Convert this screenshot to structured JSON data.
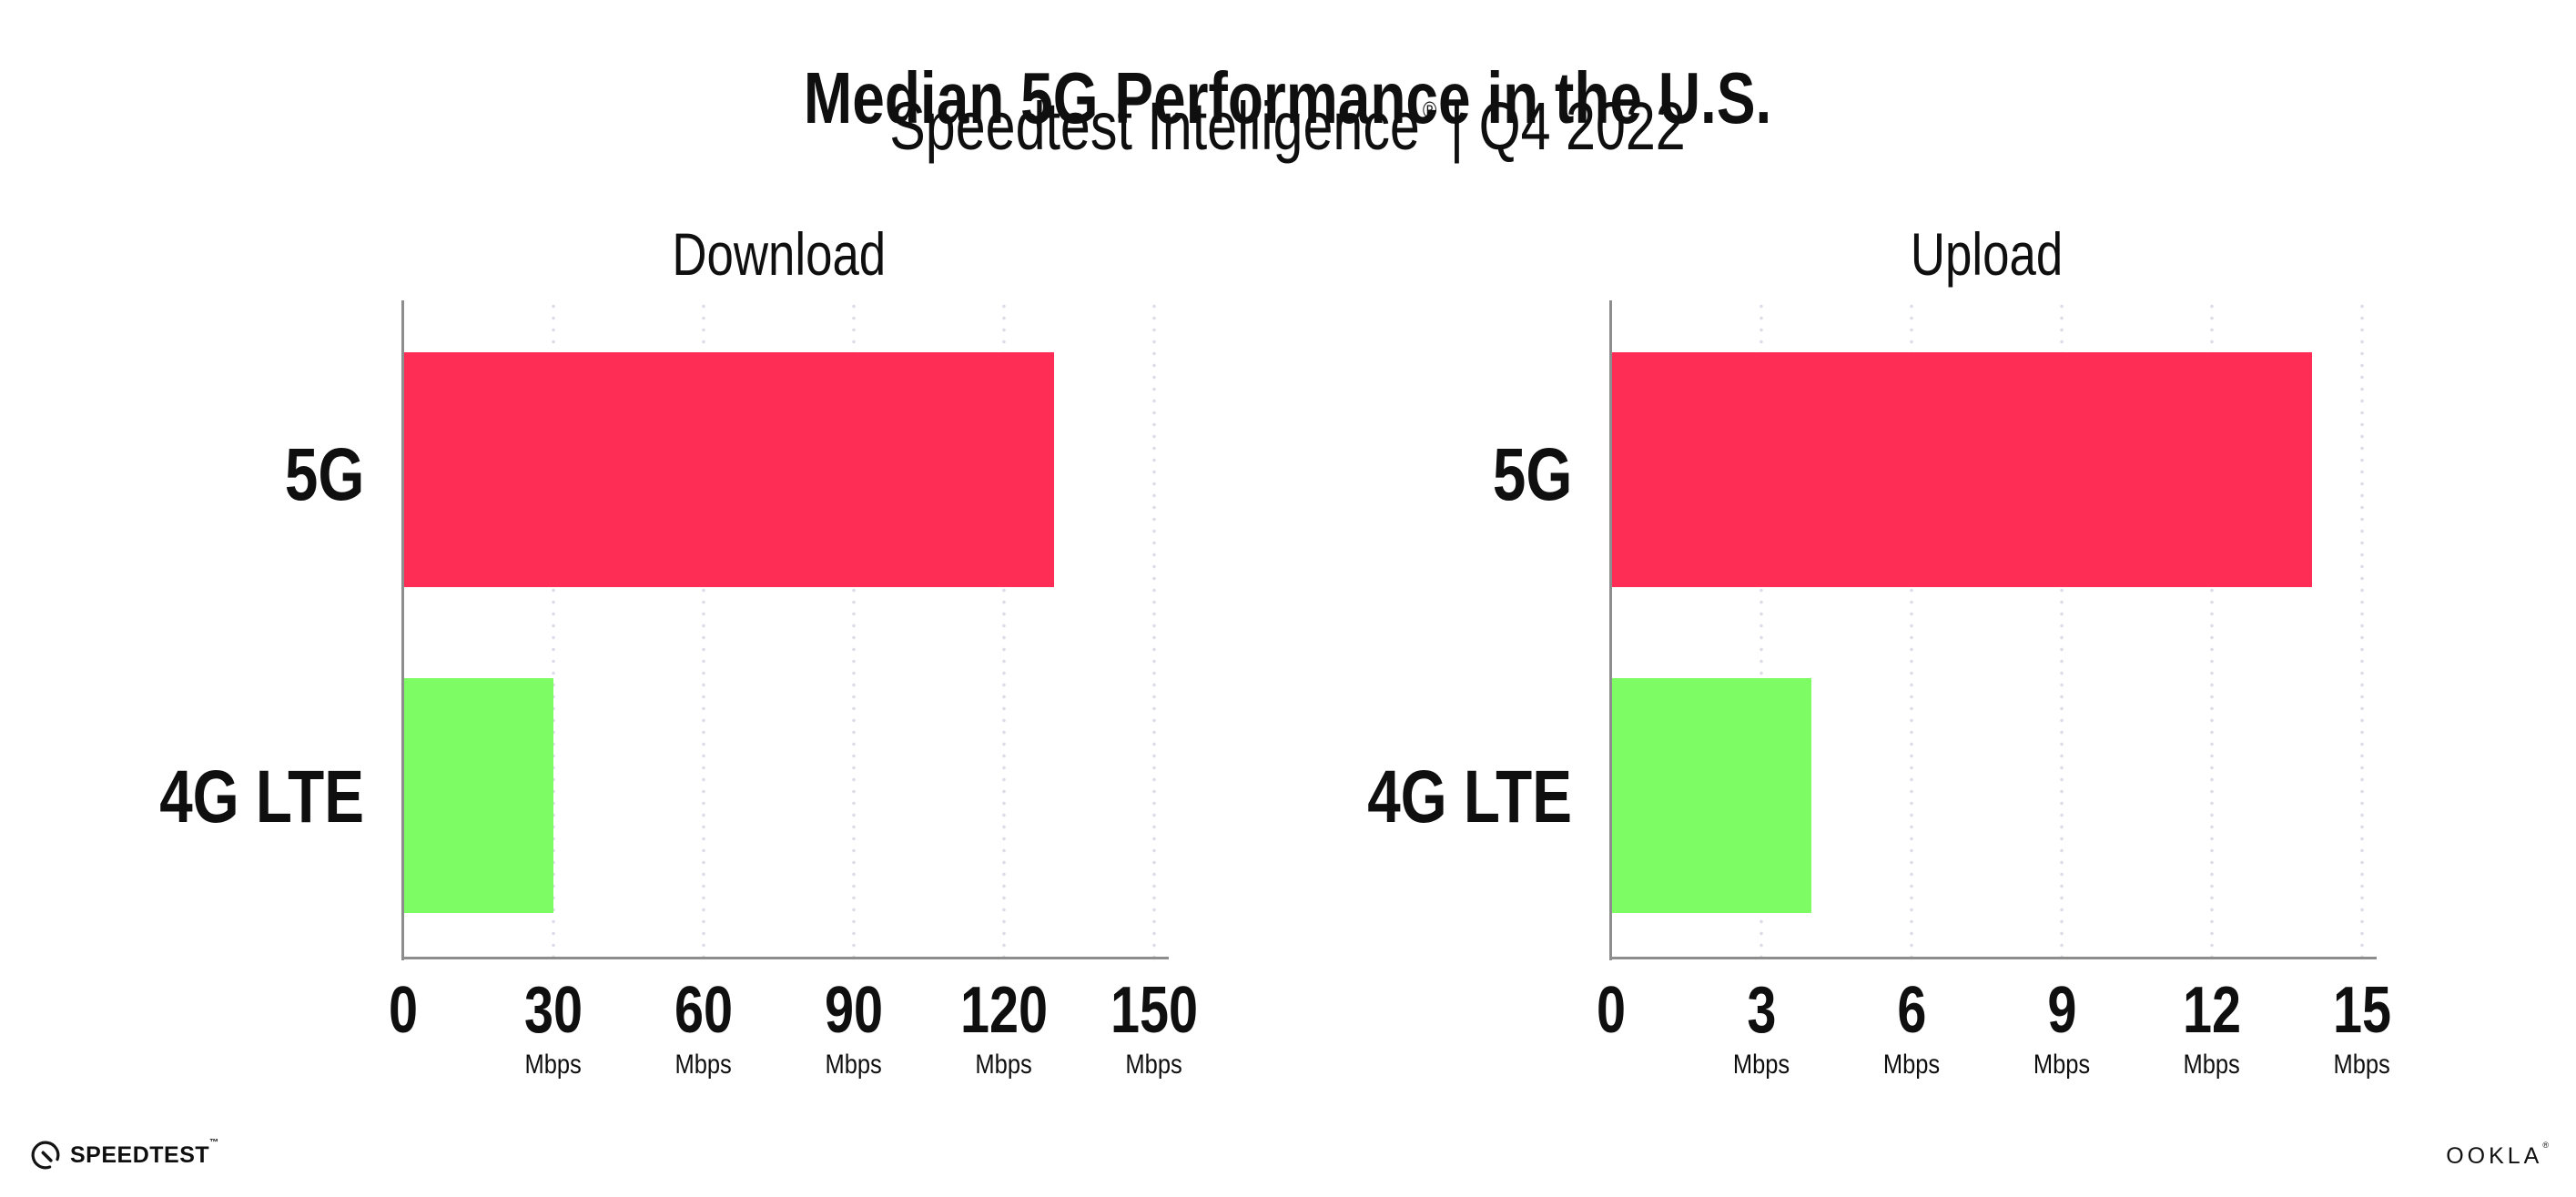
{
  "header": {
    "title": "Median 5G Performance in the U.S.",
    "subtitle_brand": "Speedtest Intelligence",
    "subtitle_reg": "®",
    "subtitle_period": "| Q4 2022"
  },
  "colors": {
    "bar_5g": "#fd2d56",
    "bar_4g_lte": "#7efc63",
    "gridline": "#dcdce8",
    "axis": "#8d8d8d",
    "text": "#0f0f0f"
  },
  "chart_data": [
    {
      "type": "bar",
      "orientation": "horizontal",
      "title": "Download",
      "categories": [
        "5G",
        "4G LTE"
      ],
      "values": [
        130,
        30
      ],
      "value_unit": "Mbps",
      "xlim": [
        0,
        150
      ],
      "grid": "vertical-dotted",
      "legend": "none",
      "bar_colors": [
        "#fd2d56",
        "#7efc63"
      ],
      "ticks": [
        {
          "value": "0",
          "unit": ""
        },
        {
          "value": "30",
          "unit": "Mbps"
        },
        {
          "value": "60",
          "unit": "Mbps"
        },
        {
          "value": "90",
          "unit": "Mbps"
        },
        {
          "value": "120",
          "unit": "Mbps"
        },
        {
          "value": "150",
          "unit": "Mbps"
        }
      ]
    },
    {
      "type": "bar",
      "orientation": "horizontal",
      "title": "Upload",
      "categories": [
        "5G",
        "4G LTE"
      ],
      "values": [
        14,
        4
      ],
      "value_unit": "Mbps",
      "xlim": [
        0,
        15
      ],
      "grid": "vertical-dotted",
      "legend": "none",
      "bar_colors": [
        "#fd2d56",
        "#7efc63"
      ],
      "ticks": [
        {
          "value": "0",
          "unit": ""
        },
        {
          "value": "3",
          "unit": "Mbps"
        },
        {
          "value": "6",
          "unit": "Mbps"
        },
        {
          "value": "9",
          "unit": "Mbps"
        },
        {
          "value": "12",
          "unit": "Mbps"
        },
        {
          "value": "15",
          "unit": "Mbps"
        }
      ]
    }
  ],
  "footer": {
    "speedtest_wordmark": "SPEEDTEST",
    "speedtest_tm": "™",
    "ookla_wordmark": "OOKLA",
    "ookla_reg": "®"
  }
}
